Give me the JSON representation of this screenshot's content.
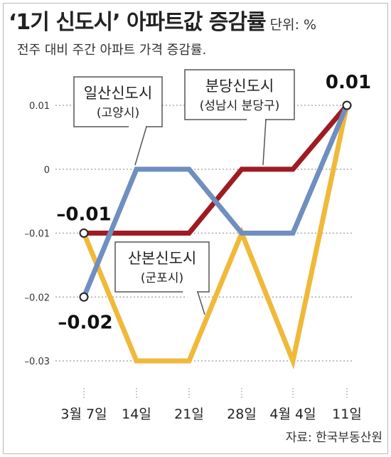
{
  "header": {
    "title": "‘1기 신도시’ 아파트값 증감률",
    "unit": "단위: %",
    "subtitle": "전주 대비 주간 아파트 가격 증감률."
  },
  "source": "자료: 한국부동산원",
  "chart_data": {
    "type": "line",
    "title": "‘1기 신도시’ 아파트값 증감률",
    "subtitle": "전주 대비 주간 아파트 가격 증감률.",
    "unit": "%",
    "categories": [
      "3월 7일",
      "14일",
      "21일",
      "28일",
      "4월 4일",
      "11일"
    ],
    "ylim": [
      -0.03,
      0.01
    ],
    "yticks": [
      0.01,
      0,
      -0.01,
      -0.02,
      -0.03
    ],
    "ytick_labels": [
      "0.01",
      "0",
      "–0.01",
      "–0.02",
      "–0.03"
    ],
    "grid": true,
    "series": [
      {
        "name": "분당신도시",
        "sub": "(성남시 분당구)",
        "color": "#9e1c21",
        "values": [
          -0.01,
          -0.01,
          -0.01,
          0,
          0,
          0.01
        ]
      },
      {
        "name": "일산신도시",
        "sub": "(고양시)",
        "color": "#6f8fc0",
        "values": [
          -0.02,
          0,
          0,
          -0.01,
          -0.01,
          0.01
        ]
      },
      {
        "name": "산본신도시",
        "sub": "(군포시)",
        "color": "#f0b93a",
        "values": [
          -0.01,
          -0.03,
          -0.03,
          -0.01,
          -0.03,
          0.01
        ]
      }
    ],
    "data_labels": [
      {
        "text": "0.01",
        "x_index": 5,
        "value": 0.01
      },
      {
        "text": "–0.01",
        "x_index": 0,
        "value": -0.01
      },
      {
        "text": "–0.02",
        "x_index": 0,
        "value": -0.02
      }
    ]
  }
}
